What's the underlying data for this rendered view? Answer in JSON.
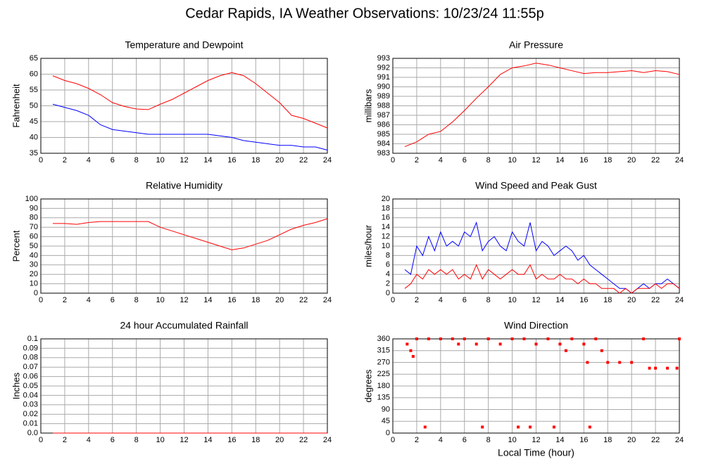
{
  "title": "Cedar Rapids, IA Weather Observations: 10/23/24 11:55p",
  "chart_data": [
    {
      "type": "line",
      "title": "Temperature and Dewpoint",
      "ylabel": "Fahrenheit",
      "x": [
        1,
        2,
        3,
        4,
        5,
        6,
        7,
        8,
        9,
        10,
        11,
        12,
        13,
        14,
        15,
        16,
        17,
        18,
        19,
        20,
        21,
        22,
        23,
        24
      ],
      "series": [
        {
          "color": "#ff0000",
          "values": [
            59.5,
            58,
            57,
            55.5,
            53.5,
            51,
            49.8,
            49,
            48.8,
            50.5,
            52,
            54,
            56,
            58,
            59.5,
            60.5,
            59.5,
            57,
            54,
            51,
            47,
            46,
            44.5,
            43
          ]
        },
        {
          "color": "#0000ff",
          "values": [
            50.5,
            49.5,
            48.5,
            47,
            44,
            42.5,
            42,
            41.5,
            41,
            41,
            41,
            41,
            41,
            41,
            40.5,
            40,
            39,
            38.5,
            38,
            37.5,
            37.5,
            37,
            37,
            36
          ]
        }
      ],
      "xlim": [
        0,
        24
      ],
      "xticks": [
        0,
        2,
        4,
        6,
        8,
        10,
        12,
        14,
        16,
        18,
        20,
        22,
        24
      ],
      "ylim": [
        35,
        65
      ],
      "yticks": [
        35,
        40,
        45,
        50,
        55,
        60,
        65
      ],
      "grid": true
    },
    {
      "type": "line",
      "title": "Air Pressure",
      "ylabel": "millibars",
      "x": [
        1,
        2,
        3,
        4,
        5,
        6,
        7,
        8,
        9,
        10,
        11,
        12,
        13,
        14,
        15,
        16,
        17,
        18,
        19,
        20,
        21,
        22,
        23,
        24
      ],
      "series": [
        {
          "color": "#ff0000",
          "values": [
            983.7,
            984.2,
            985,
            985.3,
            986.3,
            987.5,
            988.8,
            990,
            991.3,
            992,
            992.2,
            992.5,
            992.3,
            992,
            991.7,
            991.4,
            991.5,
            991.5,
            991.6,
            991.7,
            991.5,
            991.7,
            991.6,
            991.3
          ]
        }
      ],
      "xlim": [
        0,
        24
      ],
      "xticks": [
        0,
        2,
        4,
        6,
        8,
        10,
        12,
        14,
        16,
        18,
        20,
        22,
        24
      ],
      "ylim": [
        983,
        993
      ],
      "yticks": [
        983,
        984,
        985,
        986,
        987,
        988,
        989,
        990,
        991,
        992,
        993
      ],
      "grid": true
    },
    {
      "type": "line",
      "title": "Relative Humidity",
      "ylabel": "Percent",
      "x": [
        1,
        2,
        3,
        4,
        5,
        6,
        7,
        8,
        9,
        10,
        11,
        12,
        13,
        14,
        15,
        16,
        17,
        18,
        19,
        20,
        21,
        22,
        23,
        24
      ],
      "series": [
        {
          "color": "#ff0000",
          "values": [
            74,
            74,
            73,
            75,
            76,
            76,
            76,
            76,
            76,
            70,
            66,
            62,
            58,
            54,
            50,
            46,
            48,
            52,
            56,
            62,
            68,
            72,
            75,
            79
          ]
        }
      ],
      "xlim": [
        0,
        24
      ],
      "xticks": [
        0,
        2,
        4,
        6,
        8,
        10,
        12,
        14,
        16,
        18,
        20,
        22,
        24
      ],
      "ylim": [
        0,
        100
      ],
      "yticks": [
        0,
        10,
        20,
        30,
        40,
        50,
        60,
        70,
        80,
        90,
        100
      ],
      "grid": true
    },
    {
      "type": "line",
      "title": "Wind Speed and Peak Gust",
      "ylabel": "miles/hour",
      "x": [
        1,
        1.5,
        2,
        2.5,
        3,
        3.5,
        4,
        4.5,
        5,
        5.5,
        6,
        6.5,
        7,
        7.5,
        8,
        8.5,
        9,
        9.5,
        10,
        10.5,
        11,
        11.5,
        12,
        12.5,
        13,
        13.5,
        14,
        14.5,
        15,
        15.5,
        16,
        16.5,
        17,
        17.5,
        18,
        18.5,
        19,
        19.5,
        20,
        20.5,
        21,
        21.5,
        22,
        22.5,
        23,
        23.5,
        24
      ],
      "series": [
        {
          "color": "#0000ff",
          "values": [
            5,
            4,
            10,
            8,
            12,
            9,
            13,
            10,
            11,
            10,
            13,
            12,
            15,
            9,
            11,
            12,
            10,
            9,
            13,
            11,
            10,
            15,
            9,
            11,
            10,
            8,
            9,
            10,
            9,
            7,
            8,
            6,
            5,
            4,
            3,
            2,
            1,
            1,
            0,
            1,
            2,
            1,
            2,
            2,
            3,
            2,
            1
          ]
        },
        {
          "color": "#ff0000",
          "values": [
            1,
            2,
            4,
            3,
            5,
            4,
            5,
            4,
            5,
            3,
            4,
            3,
            6,
            3,
            5,
            4,
            3,
            4,
            5,
            4,
            4,
            6,
            3,
            4,
            3,
            3,
            4,
            3,
            3,
            2,
            3,
            2,
            2,
            1,
            1,
            1,
            0,
            1,
            0,
            1,
            1,
            1,
            2,
            1,
            2,
            2,
            1
          ]
        }
      ],
      "xlim": [
        0,
        24
      ],
      "xticks": [
        0,
        2,
        4,
        6,
        8,
        10,
        12,
        14,
        16,
        18,
        20,
        22,
        24
      ],
      "ylim": [
        0,
        20
      ],
      "yticks": [
        0,
        2,
        4,
        6,
        8,
        10,
        12,
        14,
        16,
        18,
        20
      ],
      "grid": true
    },
    {
      "type": "line",
      "title": "24 hour Accumulated Rainfall",
      "ylabel": "Inches",
      "x": [
        1,
        24
      ],
      "series": [
        {
          "color": "#ff0000",
          "values": [
            0,
            0
          ]
        }
      ],
      "xlim": [
        0,
        24
      ],
      "xticks": [
        0,
        2,
        4,
        6,
        8,
        10,
        12,
        14,
        16,
        18,
        20,
        22,
        24
      ],
      "ylim": [
        0,
        0.1
      ],
      "yticks": [
        {
          "value": 0,
          "label": "0.0"
        },
        0.01,
        0.02,
        0.03,
        0.04,
        0.05,
        0.06,
        0.07,
        0.08,
        0.09,
        0.1
      ],
      "grid": true
    },
    {
      "type": "scatter",
      "title": "Wind Direction",
      "ylabel": "degrees",
      "xlabel": "Local Time (hour)",
      "x": [
        1.2,
        1.5,
        1.7,
        2,
        2.7,
        3,
        4,
        5,
        5.5,
        6,
        7,
        7.5,
        8,
        9,
        10,
        10.5,
        11,
        11.5,
        12,
        13,
        13.5,
        14,
        14.5,
        15,
        16,
        16.3,
        16.5,
        17,
        17.5,
        18,
        19,
        20,
        21,
        21.5,
        22,
        23,
        23.8,
        24
      ],
      "series": [
        {
          "color": "#ff0000",
          "values": [
            340,
            315,
            293,
            360,
            23,
            360,
            360,
            360,
            340,
            360,
            340,
            23,
            360,
            340,
            360,
            23,
            360,
            23,
            340,
            360,
            23,
            340,
            315,
            360,
            340,
            270,
            23,
            360,
            315,
            270,
            270,
            270,
            360,
            248,
            248,
            248,
            248,
            360
          ]
        }
      ],
      "xlim": [
        0,
        24
      ],
      "xticks": [
        0,
        2,
        4,
        6,
        8,
        10,
        12,
        14,
        16,
        18,
        20,
        22,
        24
      ],
      "ylim": [
        0,
        360
      ],
      "yticks": [
        0,
        45,
        90,
        135,
        180,
        225,
        270,
        315,
        360
      ],
      "grid": true
    }
  ]
}
